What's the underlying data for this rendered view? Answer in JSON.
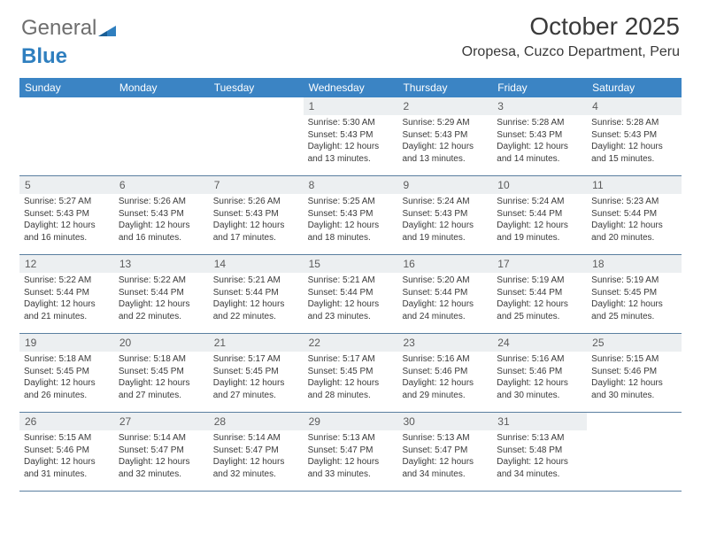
{
  "brand": {
    "part1": "General",
    "part2": "Blue"
  },
  "header": {
    "month_title": "October 2025",
    "location": "Oropesa, Cuzco Department, Peru"
  },
  "colors": {
    "header_bg": "#3b84c4",
    "header_text": "#ffffff",
    "daynum_bg": "#eceff1",
    "week_border": "#5a7fa0",
    "body_text": "#3a3a3a",
    "logo_gray": "#6e6e6e",
    "logo_blue": "#2f7fbf"
  },
  "day_labels": [
    "Sunday",
    "Monday",
    "Tuesday",
    "Wednesday",
    "Thursday",
    "Friday",
    "Saturday"
  ],
  "weeks": [
    [
      null,
      null,
      null,
      {
        "n": "1",
        "sr": "Sunrise: 5:30 AM",
        "ss": "Sunset: 5:43 PM",
        "dl": "Daylight: 12 hours and 13 minutes."
      },
      {
        "n": "2",
        "sr": "Sunrise: 5:29 AM",
        "ss": "Sunset: 5:43 PM",
        "dl": "Daylight: 12 hours and 13 minutes."
      },
      {
        "n": "3",
        "sr": "Sunrise: 5:28 AM",
        "ss": "Sunset: 5:43 PM",
        "dl": "Daylight: 12 hours and 14 minutes."
      },
      {
        "n": "4",
        "sr": "Sunrise: 5:28 AM",
        "ss": "Sunset: 5:43 PM",
        "dl": "Daylight: 12 hours and 15 minutes."
      }
    ],
    [
      {
        "n": "5",
        "sr": "Sunrise: 5:27 AM",
        "ss": "Sunset: 5:43 PM",
        "dl": "Daylight: 12 hours and 16 minutes."
      },
      {
        "n": "6",
        "sr": "Sunrise: 5:26 AM",
        "ss": "Sunset: 5:43 PM",
        "dl": "Daylight: 12 hours and 16 minutes."
      },
      {
        "n": "7",
        "sr": "Sunrise: 5:26 AM",
        "ss": "Sunset: 5:43 PM",
        "dl": "Daylight: 12 hours and 17 minutes."
      },
      {
        "n": "8",
        "sr": "Sunrise: 5:25 AM",
        "ss": "Sunset: 5:43 PM",
        "dl": "Daylight: 12 hours and 18 minutes."
      },
      {
        "n": "9",
        "sr": "Sunrise: 5:24 AM",
        "ss": "Sunset: 5:43 PM",
        "dl": "Daylight: 12 hours and 19 minutes."
      },
      {
        "n": "10",
        "sr": "Sunrise: 5:24 AM",
        "ss": "Sunset: 5:44 PM",
        "dl": "Daylight: 12 hours and 19 minutes."
      },
      {
        "n": "11",
        "sr": "Sunrise: 5:23 AM",
        "ss": "Sunset: 5:44 PM",
        "dl": "Daylight: 12 hours and 20 minutes."
      }
    ],
    [
      {
        "n": "12",
        "sr": "Sunrise: 5:22 AM",
        "ss": "Sunset: 5:44 PM",
        "dl": "Daylight: 12 hours and 21 minutes."
      },
      {
        "n": "13",
        "sr": "Sunrise: 5:22 AM",
        "ss": "Sunset: 5:44 PM",
        "dl": "Daylight: 12 hours and 22 minutes."
      },
      {
        "n": "14",
        "sr": "Sunrise: 5:21 AM",
        "ss": "Sunset: 5:44 PM",
        "dl": "Daylight: 12 hours and 22 minutes."
      },
      {
        "n": "15",
        "sr": "Sunrise: 5:21 AM",
        "ss": "Sunset: 5:44 PM",
        "dl": "Daylight: 12 hours and 23 minutes."
      },
      {
        "n": "16",
        "sr": "Sunrise: 5:20 AM",
        "ss": "Sunset: 5:44 PM",
        "dl": "Daylight: 12 hours and 24 minutes."
      },
      {
        "n": "17",
        "sr": "Sunrise: 5:19 AM",
        "ss": "Sunset: 5:44 PM",
        "dl": "Daylight: 12 hours and 25 minutes."
      },
      {
        "n": "18",
        "sr": "Sunrise: 5:19 AM",
        "ss": "Sunset: 5:45 PM",
        "dl": "Daylight: 12 hours and 25 minutes."
      }
    ],
    [
      {
        "n": "19",
        "sr": "Sunrise: 5:18 AM",
        "ss": "Sunset: 5:45 PM",
        "dl": "Daylight: 12 hours and 26 minutes."
      },
      {
        "n": "20",
        "sr": "Sunrise: 5:18 AM",
        "ss": "Sunset: 5:45 PM",
        "dl": "Daylight: 12 hours and 27 minutes."
      },
      {
        "n": "21",
        "sr": "Sunrise: 5:17 AM",
        "ss": "Sunset: 5:45 PM",
        "dl": "Daylight: 12 hours and 27 minutes."
      },
      {
        "n": "22",
        "sr": "Sunrise: 5:17 AM",
        "ss": "Sunset: 5:45 PM",
        "dl": "Daylight: 12 hours and 28 minutes."
      },
      {
        "n": "23",
        "sr": "Sunrise: 5:16 AM",
        "ss": "Sunset: 5:46 PM",
        "dl": "Daylight: 12 hours and 29 minutes."
      },
      {
        "n": "24",
        "sr": "Sunrise: 5:16 AM",
        "ss": "Sunset: 5:46 PM",
        "dl": "Daylight: 12 hours and 30 minutes."
      },
      {
        "n": "25",
        "sr": "Sunrise: 5:15 AM",
        "ss": "Sunset: 5:46 PM",
        "dl": "Daylight: 12 hours and 30 minutes."
      }
    ],
    [
      {
        "n": "26",
        "sr": "Sunrise: 5:15 AM",
        "ss": "Sunset: 5:46 PM",
        "dl": "Daylight: 12 hours and 31 minutes."
      },
      {
        "n": "27",
        "sr": "Sunrise: 5:14 AM",
        "ss": "Sunset: 5:47 PM",
        "dl": "Daylight: 12 hours and 32 minutes."
      },
      {
        "n": "28",
        "sr": "Sunrise: 5:14 AM",
        "ss": "Sunset: 5:47 PM",
        "dl": "Daylight: 12 hours and 32 minutes."
      },
      {
        "n": "29",
        "sr": "Sunrise: 5:13 AM",
        "ss": "Sunset: 5:47 PM",
        "dl": "Daylight: 12 hours and 33 minutes."
      },
      {
        "n": "30",
        "sr": "Sunrise: 5:13 AM",
        "ss": "Sunset: 5:47 PM",
        "dl": "Daylight: 12 hours and 34 minutes."
      },
      {
        "n": "31",
        "sr": "Sunrise: 5:13 AM",
        "ss": "Sunset: 5:48 PM",
        "dl": "Daylight: 12 hours and 34 minutes."
      },
      null
    ]
  ]
}
